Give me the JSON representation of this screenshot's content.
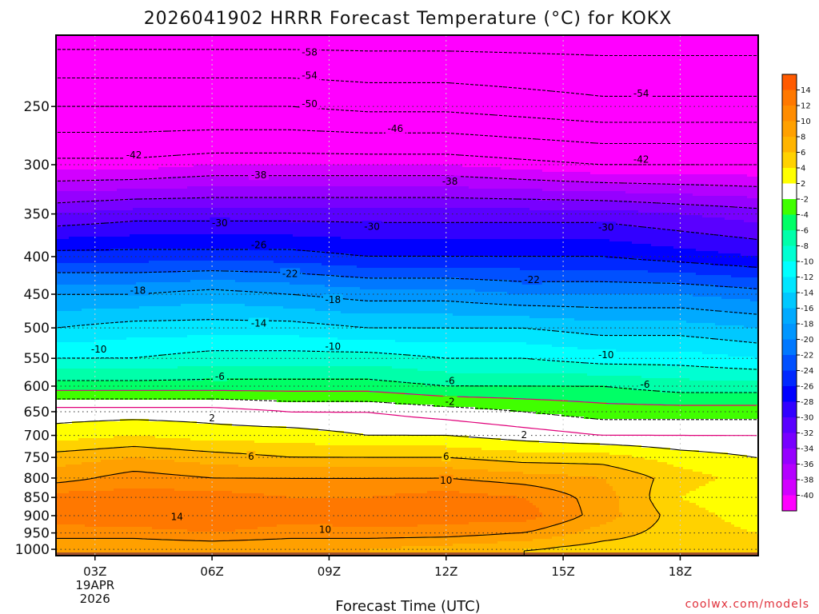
{
  "chart_data": {
    "type": "heatmap",
    "title": "2026041902 HRRR Forecast Temperature (°C) for KOKX",
    "xlabel": "Forecast Time (UTC)",
    "x_ticks": [
      {
        "label": "03Z",
        "hour": 3
      },
      {
        "label": "06Z",
        "hour": 6
      },
      {
        "label": "09Z",
        "hour": 9
      },
      {
        "label": "12Z",
        "hour": 12
      },
      {
        "label": "15Z",
        "hour": 15
      },
      {
        "label": "18Z",
        "hour": 18
      }
    ],
    "x_date_lines": [
      "19APR",
      "2026"
    ],
    "xlim_hours": [
      2,
      20
    ],
    "y_ticks": [
      250,
      300,
      350,
      400,
      450,
      500,
      550,
      600,
      650,
      700,
      750,
      800,
      850,
      900,
      950,
      1000
    ],
    "y_scale": "log",
    "ylim_hpa": [
      1020,
      200
    ],
    "grid": true,
    "hours": [
      2,
      4,
      6,
      8,
      10,
      12,
      14,
      16,
      18,
      20
    ],
    "levels_hpa": [
      200,
      250,
      300,
      350,
      400,
      450,
      500,
      550,
      600,
      650,
      700,
      750,
      800,
      850,
      900,
      950,
      1000
    ],
    "temperature_c": [
      [
        -60,
        -60,
        -60,
        -60,
        -60,
        -60,
        -60,
        -60,
        -60,
        -60
      ],
      [
        -50,
        -50,
        -50,
        -50,
        -51,
        -51,
        -52,
        -53,
        -53,
        -53
      ],
      [
        -41,
        -41,
        -40,
        -40,
        -40,
        -40,
        -41,
        -42,
        -42,
        -42
      ],
      [
        -32,
        -31,
        -31,
        -31,
        -31,
        -31,
        -31,
        -31,
        -32,
        -33
      ],
      [
        -25,
        -25,
        -25,
        -25,
        -26,
        -26,
        -26,
        -26,
        -27,
        -28
      ],
      [
        -18,
        -18,
        -17,
        -18,
        -19,
        -19,
        -20,
        -20,
        -20,
        -21
      ],
      [
        -14,
        -13,
        -13,
        -13,
        -14,
        -14,
        -14,
        -15,
        -15,
        -16
      ],
      [
        -10,
        -10,
        -9,
        -9,
        -9,
        -10,
        -10,
        -11,
        -11,
        -12
      ],
      [
        -5,
        -5,
        -5,
        -5,
        -5,
        -6,
        -6,
        -6,
        -7,
        -7
      ],
      [
        1,
        1,
        1,
        0,
        0,
        -1,
        -2,
        -3,
        -3,
        -3
      ],
      [
        3,
        4,
        3,
        3,
        2,
        2,
        1,
        0,
        0,
        0
      ],
      [
        7,
        8,
        7,
        6,
        6,
        6,
        5,
        5,
        3,
        2
      ],
      [
        9,
        11,
        10,
        10,
        10,
        10,
        9,
        8,
        5,
        3
      ],
      [
        13,
        13,
        13,
        12,
        12,
        13,
        12,
        9,
        4,
        2
      ],
      [
        13,
        14,
        14,
        13,
        14,
        13,
        13,
        9,
        5,
        3
      ],
      [
        11,
        11,
        12,
        11,
        11,
        11,
        10,
        7,
        5,
        4
      ],
      [
        8,
        8,
        8,
        8,
        8,
        7,
        6,
        5,
        5,
        4
      ]
    ],
    "contour_labels": [
      {
        "text": "-58",
        "hour": 8.5,
        "hpa": 211
      },
      {
        "text": "-54",
        "hour": 8.5,
        "hpa": 227
      },
      {
        "text": "-50",
        "hour": 8.5,
        "hpa": 248
      },
      {
        "text": "-46",
        "hour": 10.7,
        "hpa": 268
      },
      {
        "text": "-54",
        "hour": 17.0,
        "hpa": 240
      },
      {
        "text": "-42",
        "hour": 4.0,
        "hpa": 291
      },
      {
        "text": "-42",
        "hour": 17.0,
        "hpa": 295
      },
      {
        "text": "-38",
        "hour": 7.2,
        "hpa": 310
      },
      {
        "text": "-38",
        "hour": 12.1,
        "hpa": 316
      },
      {
        "text": "-30",
        "hour": 6.2,
        "hpa": 360
      },
      {
        "text": "-30",
        "hour": 10.1,
        "hpa": 364
      },
      {
        "text": "-30",
        "hour": 16.1,
        "hpa": 365
      },
      {
        "text": "-26",
        "hour": 7.2,
        "hpa": 386
      },
      {
        "text": "-22",
        "hour": 8.0,
        "hpa": 422
      },
      {
        "text": "-22",
        "hour": 14.2,
        "hpa": 430
      },
      {
        "text": "-18",
        "hour": 4.1,
        "hpa": 445
      },
      {
        "text": "-18",
        "hour": 9.1,
        "hpa": 458
      },
      {
        "text": "-14",
        "hour": 7.2,
        "hpa": 493
      },
      {
        "text": "-10",
        "hour": 3.1,
        "hpa": 535
      },
      {
        "text": "-10",
        "hour": 9.1,
        "hpa": 530
      },
      {
        "text": "-10",
        "hour": 16.1,
        "hpa": 544
      },
      {
        "text": "-6",
        "hour": 6.2,
        "hpa": 582
      },
      {
        "text": "-6",
        "hour": 12.1,
        "hpa": 590
      },
      {
        "text": "-6",
        "hour": 17.1,
        "hpa": 597
      },
      {
        "text": "-2",
        "hour": 12.1,
        "hpa": 630
      },
      {
        "text": "2",
        "hour": 6.0,
        "hpa": 663
      },
      {
        "text": "2",
        "hour": 14.0,
        "hpa": 699
      },
      {
        "text": "6",
        "hour": 7.0,
        "hpa": 748
      },
      {
        "text": "6",
        "hour": 12.0,
        "hpa": 748
      },
      {
        "text": "10",
        "hour": 12.0,
        "hpa": 806
      },
      {
        "text": "10",
        "hour": 8.9,
        "hpa": 940
      },
      {
        "text": "14",
        "hour": 5.1,
        "hpa": 903
      }
    ],
    "colorbar": {
      "labels": [
        "14",
        "12",
        "10",
        "8",
        "6",
        "4",
        "2",
        "-2",
        "-4",
        "-6",
        "-8",
        "-10",
        "-12",
        "-14",
        "-16",
        "-18",
        "-20",
        "-22",
        "-24",
        "-26",
        "-28",
        "-30",
        "-32",
        "-34",
        "-36",
        "-38",
        "-40"
      ],
      "colors": [
        "#ff5a00",
        "#ff7800",
        "#ff8c00",
        "#ffa000",
        "#ffb400",
        "#ffd200",
        "#ffff00",
        "#ffffff",
        "#40ff00",
        "#00ff66",
        "#00ffaa",
        "#00ffd2",
        "#00ffff",
        "#00e6ff",
        "#00c8ff",
        "#00aaff",
        "#0096ff",
        "#0078ff",
        "#0050ff",
        "#0028ff",
        "#0000ff",
        "#3200ff",
        "#5a00ff",
        "#7800ff",
        "#9600ff",
        "#b400ff",
        "#d200ff",
        "#ff00ff"
      ]
    },
    "ground_color": "#a0522d",
    "credit": "coolwx.com/models"
  }
}
